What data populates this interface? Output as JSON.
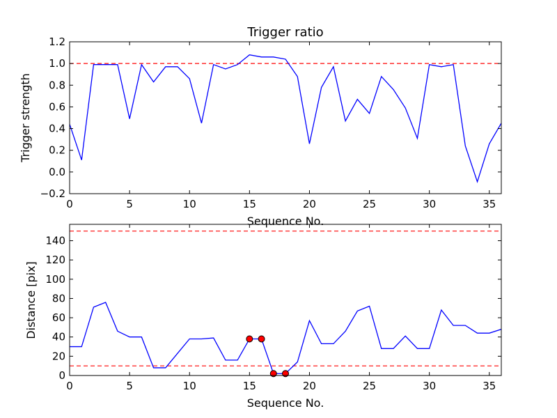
{
  "colors": {
    "line": "#0000ff",
    "threshold": "#ff0000",
    "marker_fill": "#ff0000",
    "marker_edge": "#000000",
    "frame": "#000000",
    "background": "#ffffff"
  },
  "chart_data": [
    {
      "type": "line",
      "title": "Trigger ratio",
      "xlabel": "Sequence No.",
      "ylabel": "Trigger strength",
      "xlim": [
        0,
        36
      ],
      "ylim": [
        -0.2,
        1.2
      ],
      "xticks": [
        0,
        5,
        10,
        15,
        20,
        25,
        30,
        35
      ],
      "xtick_labels": [
        "0",
        "5",
        "10",
        "15",
        "20",
        "25",
        "30",
        "35"
      ],
      "yticks": [
        -0.2,
        0.0,
        0.2,
        0.4,
        0.6,
        0.8,
        1.0,
        1.2
      ],
      "ytick_labels": [
        "−0.2",
        "0.0",
        "0.2",
        "0.4",
        "0.6",
        "0.8",
        "1.0",
        "1.2"
      ],
      "grid": false,
      "series": [
        {
          "x": [
            0,
            1,
            2,
            3,
            4,
            5,
            6,
            7,
            8,
            9,
            10,
            11,
            12,
            13,
            14,
            15,
            16,
            17,
            18,
            19,
            20,
            21,
            22,
            23,
            24,
            25,
            26,
            27,
            28,
            29,
            30,
            31,
            32,
            33,
            34,
            35,
            36
          ],
          "values": [
            0.44,
            0.11,
            0.99,
            0.99,
            0.99,
            0.49,
            0.99,
            0.83,
            0.97,
            0.97,
            0.86,
            0.45,
            0.99,
            0.95,
            0.99,
            1.08,
            1.06,
            1.06,
            1.04,
            0.88,
            0.26,
            0.78,
            0.97,
            0.47,
            0.67,
            0.54,
            0.88,
            0.76,
            0.59,
            0.31,
            0.99,
            0.97,
            0.99,
            0.24,
            -0.09,
            0.26,
            0.45
          ]
        }
      ],
      "reference_lines": [
        {
          "y": 1.0,
          "style": "dashed"
        }
      ]
    },
    {
      "type": "line",
      "title": "",
      "xlabel": "Sequence No.",
      "ylabel": "Distance [pix]",
      "xlim": [
        0,
        36
      ],
      "ylim": [
        0,
        157
      ],
      "xticks": [
        0,
        5,
        10,
        15,
        20,
        25,
        30,
        35
      ],
      "xtick_labels": [
        "0",
        "5",
        "10",
        "15",
        "20",
        "25",
        "30",
        "35"
      ],
      "yticks": [
        0,
        20,
        40,
        60,
        80,
        100,
        120,
        140
      ],
      "ytick_labels": [
        "0",
        "20",
        "40",
        "60",
        "80",
        "100",
        "120",
        "140"
      ],
      "grid": false,
      "series": [
        {
          "x": [
            0,
            1,
            2,
            3,
            4,
            5,
            6,
            7,
            8,
            9,
            10,
            11,
            12,
            13,
            14,
            15,
            16,
            17,
            18,
            19,
            20,
            21,
            22,
            23,
            24,
            25,
            26,
            27,
            28,
            29,
            30,
            31,
            32,
            33,
            34,
            35,
            36
          ],
          "values": [
            30,
            30,
            71,
            76,
            46,
            40,
            40,
            8,
            8,
            23,
            38,
            38,
            39,
            16,
            16,
            38,
            38,
            2,
            2,
            14,
            57,
            33,
            33,
            46,
            67,
            72,
            28,
            28,
            41,
            28,
            28,
            68,
            52,
            52,
            44,
            44,
            48
          ]
        }
      ],
      "highlighted_points": [
        {
          "x": 15,
          "y": 38
        },
        {
          "x": 16,
          "y": 38
        },
        {
          "x": 17,
          "y": 2
        },
        {
          "x": 18,
          "y": 2
        }
      ],
      "reference_lines": [
        {
          "y": 150,
          "style": "dashed"
        },
        {
          "y": 10,
          "style": "dashed"
        }
      ]
    }
  ]
}
